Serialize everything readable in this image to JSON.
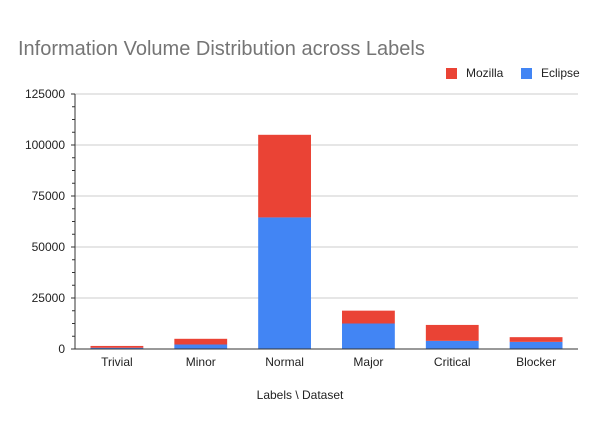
{
  "chart_data": {
    "type": "bar",
    "stacked": true,
    "title": "Information Volume Distribution across Labels",
    "xlabel": "Labels \\ Dataset",
    "ylabel": "",
    "categories": [
      "Trivial",
      "Minor",
      "Normal",
      "Major",
      "Critical",
      "Blocker"
    ],
    "series": [
      {
        "name": "Eclipse",
        "color": "#4285f4",
        "values": [
          600,
          2200,
          64500,
          12500,
          4000,
          3500
        ]
      },
      {
        "name": "Mozilla",
        "color": "#ea4335",
        "values": [
          900,
          2800,
          40500,
          6300,
          7800,
          2300
        ]
      }
    ],
    "ylim": [
      0,
      125000
    ],
    "yticks": [
      "0",
      "25000",
      "50000",
      "75000",
      "100000",
      "125000"
    ],
    "grid": true,
    "legend_position": "top-right"
  }
}
